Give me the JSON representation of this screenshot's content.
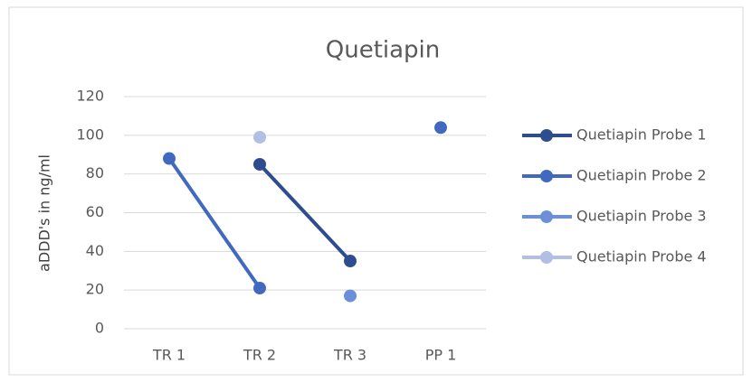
{
  "chart_data": {
    "type": "line",
    "title": "Quetiapin",
    "y_label": "aDDD's in ng/ml",
    "categories": [
      "TR 1",
      "TR 2",
      "TR 3",
      "PP 1"
    ],
    "series": [
      {
        "name": "Quetiapin Probe 1",
        "color": "#2e4d8f",
        "values": [
          null,
          85,
          35,
          null
        ]
      },
      {
        "name": "Quetiapin Probe 2",
        "color": "#4169c0",
        "values": [
          88,
          21,
          null,
          104
        ]
      },
      {
        "name": "Quetiapin Probe 3",
        "color": "#6d8fd8",
        "values": [
          null,
          null,
          17,
          null
        ]
      },
      {
        "name": "Quetiapin Probe 4",
        "color": "#b0bfe3",
        "values": [
          null,
          99,
          null,
          null
        ]
      }
    ],
    "ylim": [
      0,
      120
    ],
    "yticks": [
      0,
      20,
      40,
      60,
      80,
      100,
      120
    ],
    "grid": true,
    "legend": "right"
  }
}
